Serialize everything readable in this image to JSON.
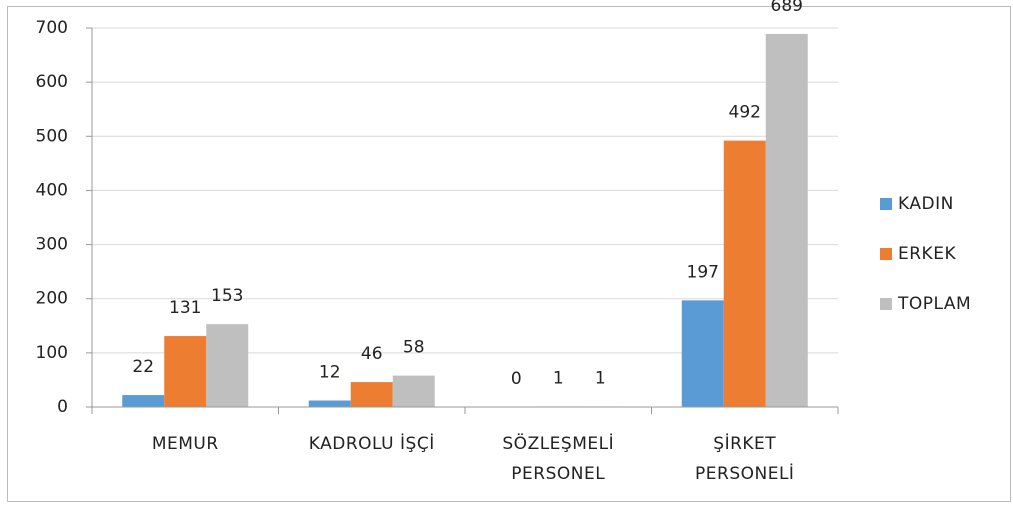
{
  "chart_data": {
    "type": "bar",
    "categories": [
      "MEMUR",
      "KADROLU İŞÇİ",
      "SÖZLEŞMELİ PERSONEL",
      "ŞİRKET PERSONELİ"
    ],
    "series": [
      {
        "name": "KADIN",
        "color": "#5b9bd5",
        "values": [
          22,
          12,
          0,
          197
        ]
      },
      {
        "name": "ERKEK",
        "color": "#ed7d31",
        "values": [
          131,
          46,
          1,
          492
        ]
      },
      {
        "name": "TOPLAM",
        "color": "#bfbfbf",
        "values": [
          153,
          58,
          1,
          689
        ]
      }
    ],
    "ylim": [
      0,
      700
    ],
    "yticks": [
      0,
      100,
      200,
      300,
      400,
      500,
      600,
      700
    ],
    "grid": true,
    "legend": "right"
  }
}
